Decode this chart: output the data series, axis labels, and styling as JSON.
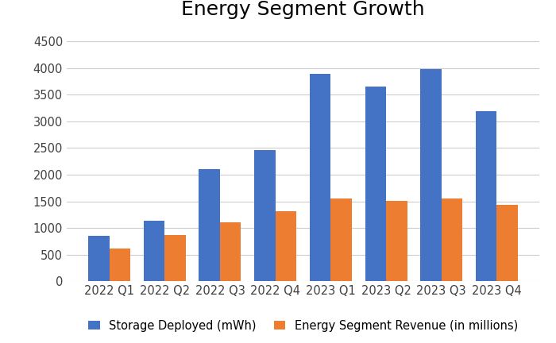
{
  "title": "Energy Segment Growth",
  "categories": [
    "2022 Q1",
    "2022 Q2",
    "2022 Q3",
    "2022 Q4",
    "2023 Q1",
    "2023 Q2",
    "2023 Q3",
    "2023 Q4"
  ],
  "storage_deployed": [
    850,
    1130,
    2100,
    2462,
    3890,
    3653,
    3980,
    3200
  ],
  "energy_revenue": [
    616,
    866,
    1100,
    1310,
    1554,
    1509,
    1559,
    1435
  ],
  "storage_color": "#4472C4",
  "revenue_color": "#ED7D31",
  "storage_label": "Storage Deployed (mWh)",
  "revenue_label": "Energy Segment Revenue (in millions)",
  "ylim": [
    0,
    4700
  ],
  "yticks": [
    0,
    500,
    1000,
    1500,
    2000,
    2500,
    3000,
    3500,
    4000,
    4500
  ],
  "title_fontsize": 18,
  "tick_fontsize": 10.5,
  "legend_fontsize": 10.5,
  "background_color": "#ffffff",
  "grid_color": "#cccccc",
  "bar_width": 0.38
}
